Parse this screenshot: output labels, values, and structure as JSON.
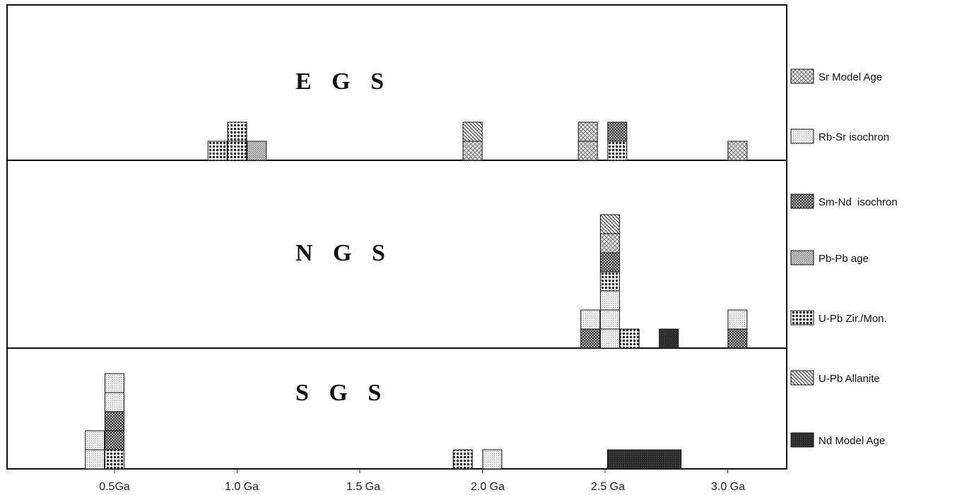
{
  "chart_data": {
    "type": "bar",
    "x_ticks": [
      {
        "value": 0.5,
        "label": "0.5Ga"
      },
      {
        "value": 1.0,
        "label": "1.0 Ga"
      },
      {
        "value": 1.5,
        "label": "1.5 Ga"
      },
      {
        "value": 2.0,
        "label": "2.0 Ga"
      },
      {
        "value": 2.5,
        "label": "2.5 Ga"
      },
      {
        "value": 3.0,
        "label": "3.0 Ga"
      }
    ],
    "legend": [
      {
        "key": "sr_model",
        "label": "Sr Model Age"
      },
      {
        "key": "rbsr",
        "label": "Rb-Sr isochron"
      },
      {
        "key": "smnd",
        "label": "Sm-Nd  isochron"
      },
      {
        "key": "pbpb",
        "label": "Pb-Pb age"
      },
      {
        "key": "upb_zir",
        "label": "U-Pb Zir./Mon."
      },
      {
        "key": "upb_allanite",
        "label": "U-Pb Allanite"
      },
      {
        "key": "nd_model",
        "label": "Nd Model Age"
      }
    ],
    "panels": [
      {
        "title": "E G S",
        "stacks": [
          {
            "age": 0.92,
            "boxes": [
              "upb_zir"
            ]
          },
          {
            "age": 1.0,
            "boxes": [
              "upb_zir",
              "upb_zir"
            ]
          },
          {
            "age": 1.08,
            "boxes": [
              "pbpb"
            ]
          },
          {
            "age": 1.96,
            "boxes": [
              "sr_model",
              "upb_allanite"
            ]
          },
          {
            "age": 2.43,
            "boxes": [
              "sr_model",
              "sr_model"
            ]
          },
          {
            "age": 2.55,
            "boxes": [
              "upb_zir",
              "smnd"
            ]
          },
          {
            "age": 3.04,
            "boxes": [
              "sr_model"
            ]
          }
        ]
      },
      {
        "title": "N G S",
        "stacks": [
          {
            "age": 2.44,
            "boxes": [
              "smnd",
              "rbsr"
            ]
          },
          {
            "age": 2.52,
            "boxes": [
              "rbsr",
              "rbsr",
              "rbsr",
              "upb_zir",
              "smnd",
              "sr_model",
              "upb_allanite"
            ]
          },
          {
            "age": 2.6,
            "boxes": [
              "upb_zir"
            ]
          },
          {
            "age": 2.76,
            "boxes": [
              "nd_model"
            ]
          },
          {
            "age": 3.04,
            "boxes": [
              "smnd",
              "rbsr"
            ]
          }
        ]
      },
      {
        "title": "S G S",
        "stacks": [
          {
            "age": 0.42,
            "boxes": [
              "rbsr",
              "rbsr"
            ]
          },
          {
            "age": 0.5,
            "boxes": [
              "upb_zir",
              "smnd",
              "smnd",
              "rbsr",
              "rbsr"
            ]
          },
          {
            "age": 1.92,
            "boxes": [
              "upb_zir"
            ]
          },
          {
            "age": 2.04,
            "boxes": [
              "rbsr"
            ]
          }
        ],
        "ranges": [
          {
            "from": 2.51,
            "to": 2.81,
            "kind": "nd_model"
          }
        ]
      }
    ]
  }
}
